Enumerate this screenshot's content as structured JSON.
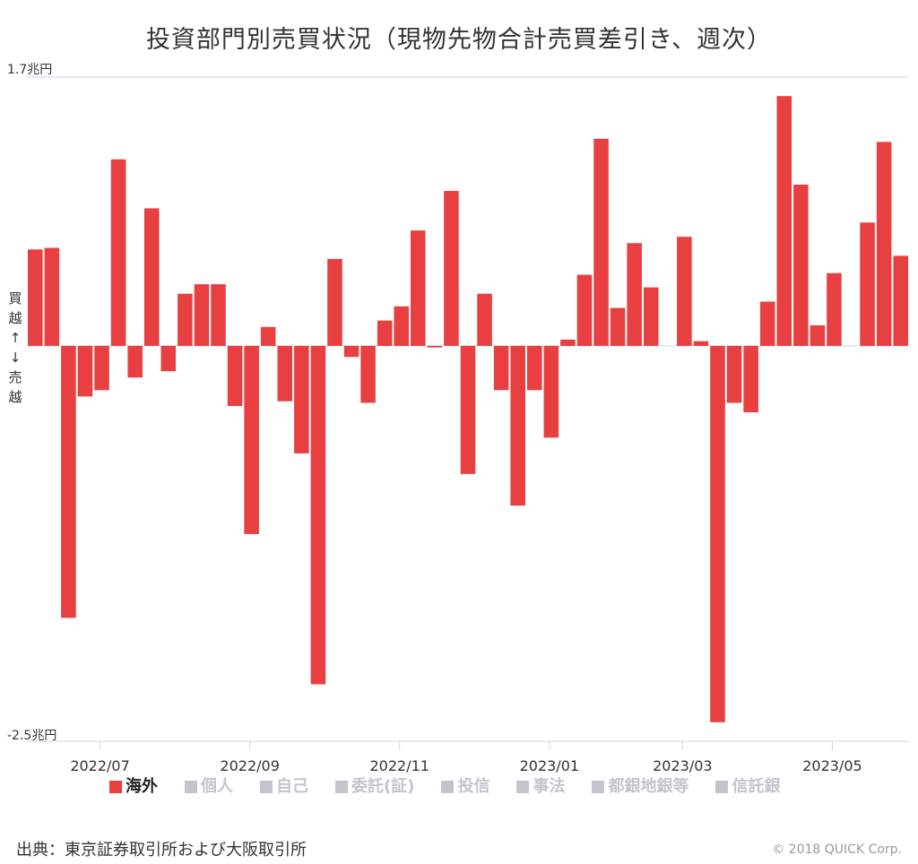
{
  "title": "投資部門別売買状況（現物先物合計売買差引き、週次）",
  "source": "出典：東京証券取引所および大阪取引所",
  "copyright": "© 2018 QUICK Corp.",
  "colors": {
    "overseas": "#e84040",
    "inactive": "#c4c4cf",
    "axis": "#ccd6eb",
    "text": "#333333"
  },
  "y_label_buy": [
    "買",
    "越",
    "↑"
  ],
  "y_label_sell": [
    "↓",
    "売",
    "越"
  ],
  "legend": [
    {
      "label": "海外",
      "active": true
    },
    {
      "label": "個人",
      "active": false
    },
    {
      "label": "自己",
      "active": false
    },
    {
      "label": "委託(証)",
      "active": false
    },
    {
      "label": "投信",
      "active": false
    },
    {
      "label": "事法",
      "active": false
    },
    {
      "label": "都銀地銀等",
      "active": false
    },
    {
      "label": "信託銀",
      "active": false
    }
  ],
  "chart_data": {
    "type": "bar",
    "y_unit": "兆円",
    "ylim": [
      -2.5,
      1.7
    ],
    "y_tick_labels": [
      "1.7兆円",
      "-2.5兆円"
    ],
    "x_tick_labels": [
      "2022/07",
      "2022/09",
      "2022/11",
      "2023/01",
      "2023/03",
      "2023/05"
    ],
    "legend_position": "bottom",
    "grid": false,
    "series": [
      {
        "name": "海外",
        "values": [
          0.61,
          0.62,
          -1.72,
          -0.32,
          -0.28,
          1.18,
          -0.2,
          0.87,
          -0.16,
          0.33,
          0.39,
          0.39,
          -0.38,
          -1.19,
          0.12,
          -0.35,
          -0.68,
          -2.14,
          0.55,
          -0.07,
          -0.36,
          0.16,
          0.25,
          0.73,
          -0.01,
          0.98,
          -0.81,
          0.33,
          -0.28,
          -1.01,
          -0.28,
          -0.58,
          0.04,
          0.45,
          1.31,
          0.24,
          0.65,
          0.37,
          null,
          0.69,
          0.03,
          -2.38,
          -0.36,
          -0.42,
          0.28,
          1.58,
          1.02,
          0.13,
          0.46,
          null,
          0.78,
          1.29,
          0.57
        ]
      }
    ]
  }
}
